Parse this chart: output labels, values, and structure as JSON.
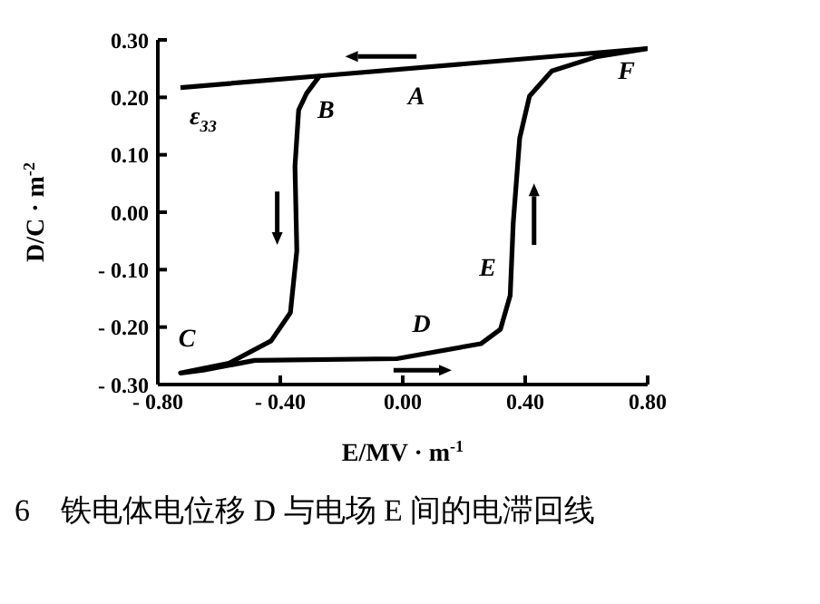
{
  "chart_data": {
    "type": "line",
    "xlabel": "E/MV · m$^{-1}$",
    "ylabel": "D/C · m$^{-2}$",
    "xlim": [
      -0.8,
      0.8
    ],
    "ylim": [
      -0.3,
      0.3
    ],
    "xticks": [
      {
        "value": -0.8,
        "label": "- 0.80"
      },
      {
        "value": -0.4,
        "label": "- 0.40"
      },
      {
        "value": 0,
        "label": "0.00"
      },
      {
        "value": 0.4,
        "label": "0.40"
      },
      {
        "value": 0.8,
        "label": "0.80"
      }
    ],
    "yticks": [
      {
        "value": -0.3,
        "label": "- 0.30"
      },
      {
        "value": -0.2,
        "label": "- 0.20"
      },
      {
        "value": -0.1,
        "label": "- 0.10"
      },
      {
        "value": 0,
        "label": "0.00"
      },
      {
        "value": 0.1,
        "label": "0.10"
      },
      {
        "value": 0.2,
        "label": "0.20"
      },
      {
        "value": 0.3,
        "label": "0.30"
      }
    ],
    "marker": "none",
    "line_style": "solid",
    "series": [
      {
        "color": "#000000",
        "x": [
          -0.272,
          -0.314,
          -0.34,
          -0.352,
          -0.346,
          -0.367,
          -0.43,
          -0.568,
          -0.726,
          -0.652,
          -0.483,
          -0.019,
          0.255,
          0.319,
          0.351,
          0.361,
          0.382,
          0.414,
          0.487,
          0.635,
          0.8,
          -0.209,
          -0.726
        ],
        "values": [
          0.237,
          0.207,
          0.178,
          0.08,
          -0.067,
          -0.175,
          -0.224,
          -0.263,
          -0.28,
          -0.275,
          -0.258,
          -0.255,
          -0.229,
          -0.204,
          -0.145,
          -0.018,
          0.129,
          0.202,
          0.246,
          0.271,
          0.285,
          0.24,
          0.217
        ]
      }
    ],
    "annotations": [
      "A",
      "B",
      "C",
      "D",
      "E",
      "F",
      "ε$_{33}$",
      "6　铁电体电位移 D 与电场 E 间的电滞回线"
    ]
  }
}
